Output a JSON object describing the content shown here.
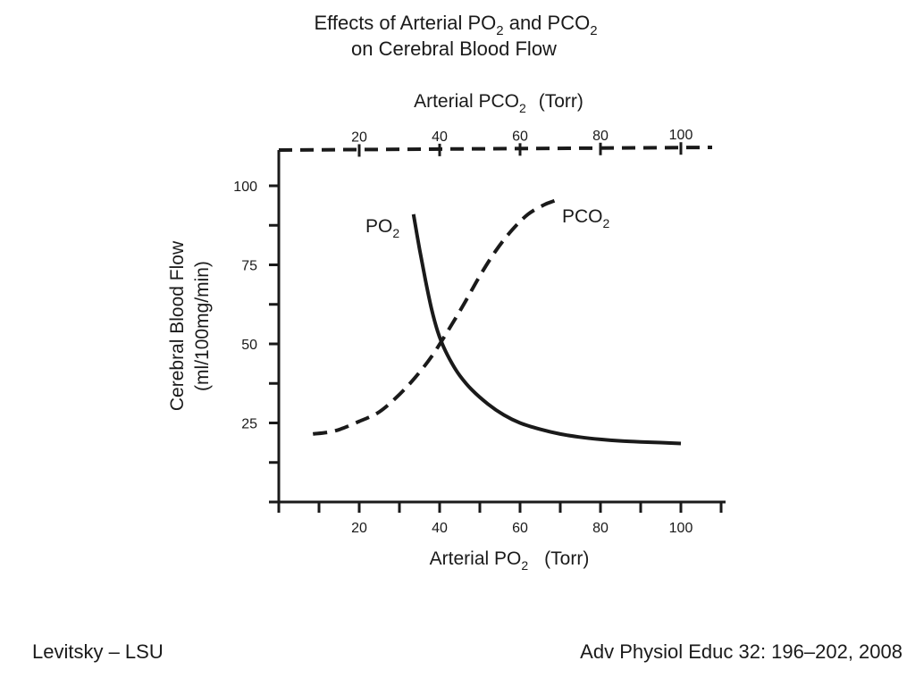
{
  "chart_data": {
    "type": "line",
    "title": {
      "line1": {
        "a": "Effects of Arterial PO",
        "sub_a": "2",
        "b": " and PCO",
        "sub_b": "2"
      },
      "line2": "on Cerebral Blood Flow"
    },
    "ylabel": {
      "line1": "Cerebral Blood Flow",
      "line2": "(ml/100mg/min)"
    },
    "xlabel_bottom": {
      "main": "Arterial PO",
      "sub": "2",
      "unit": "(Torr)"
    },
    "xlabel_top": {
      "main": "Arterial PCO",
      "sub": "2",
      "unit": "(Torr)"
    },
    "xlim": [
      0,
      110
    ],
    "ylim": [
      0,
      110
    ],
    "x_ticks_bottom": [
      20,
      40,
      60,
      80,
      100
    ],
    "x_ticks_top": [
      20,
      40,
      60,
      80,
      100
    ],
    "y_ticks": [
      25,
      50,
      75,
      100
    ],
    "grid": false,
    "series": [
      {
        "name": "PO",
        "name_sub": "2",
        "style": "solid",
        "axis": "bottom",
        "points": [
          [
            33.5,
            91
          ],
          [
            35,
            80
          ],
          [
            36.5,
            70
          ],
          [
            38,
            61
          ],
          [
            39.5,
            54
          ],
          [
            41,
            49
          ],
          [
            43,
            44
          ],
          [
            45,
            40
          ],
          [
            48,
            35.5
          ],
          [
            52,
            31
          ],
          [
            56,
            27.5
          ],
          [
            60,
            25
          ],
          [
            65,
            23
          ],
          [
            70,
            21.5
          ],
          [
            75,
            20.5
          ],
          [
            80,
            19.8
          ],
          [
            85,
            19.3
          ],
          [
            90,
            19
          ],
          [
            95,
            18.8
          ],
          [
            100,
            18.5
          ]
        ]
      },
      {
        "name": "PCO",
        "name_sub": "2",
        "style": "dashed",
        "axis": "top",
        "points": [
          [
            8.5,
            21.5
          ],
          [
            14,
            22.5
          ],
          [
            20,
            25.5
          ],
          [
            25,
            28.5
          ],
          [
            30,
            34
          ],
          [
            34,
            39.5
          ],
          [
            38,
            46
          ],
          [
            42,
            54
          ],
          [
            46,
            62.5
          ],
          [
            50,
            71.5
          ],
          [
            54,
            79.5
          ],
          [
            58,
            86
          ],
          [
            62,
            91
          ],
          [
            66,
            94
          ],
          [
            68,
            95
          ],
          [
            69,
            95.5
          ]
        ]
      }
    ]
  },
  "footer": {
    "left": "Levitsky – LSU",
    "right": "Adv Physiol Educ 32: 196–202, 2008"
  }
}
